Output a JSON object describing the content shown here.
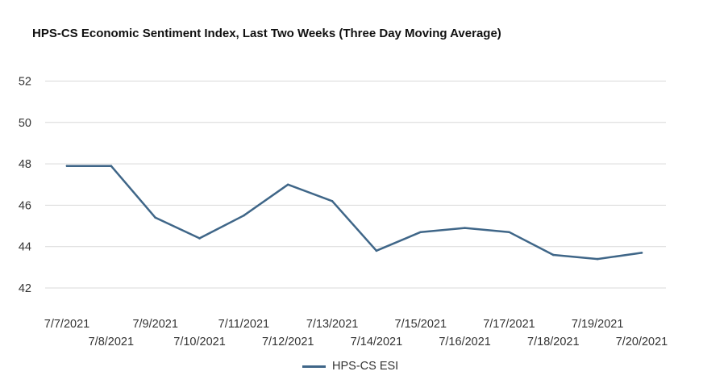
{
  "chart_data": {
    "type": "line",
    "title": "HPS-CS Economic Sentiment Index, Last Two Weeks (Three Day Moving Average)",
    "xlabel": "",
    "ylabel": "",
    "categories": [
      "7/7/2021",
      "7/8/2021",
      "7/9/2021",
      "7/10/2021",
      "7/11/2021",
      "7/12/2021",
      "7/13/2021",
      "7/14/2021",
      "7/15/2021",
      "7/16/2021",
      "7/17/2021",
      "7/18/2021",
      "7/19/2021",
      "7/20/2021"
    ],
    "ylim": [
      41,
      53
    ],
    "yticks": [
      "42",
      "44",
      "46",
      "48",
      "50",
      "52"
    ],
    "grid": true,
    "legend_position": "bottom",
    "series": [
      {
        "name": "HPS-CS ESI",
        "color": "#3f6688",
        "values": [
          47.9,
          47.9,
          45.4,
          44.4,
          45.5,
          47.0,
          46.2,
          43.8,
          44.7,
          44.9,
          44.7,
          43.6,
          43.4,
          43.7
        ]
      }
    ]
  }
}
